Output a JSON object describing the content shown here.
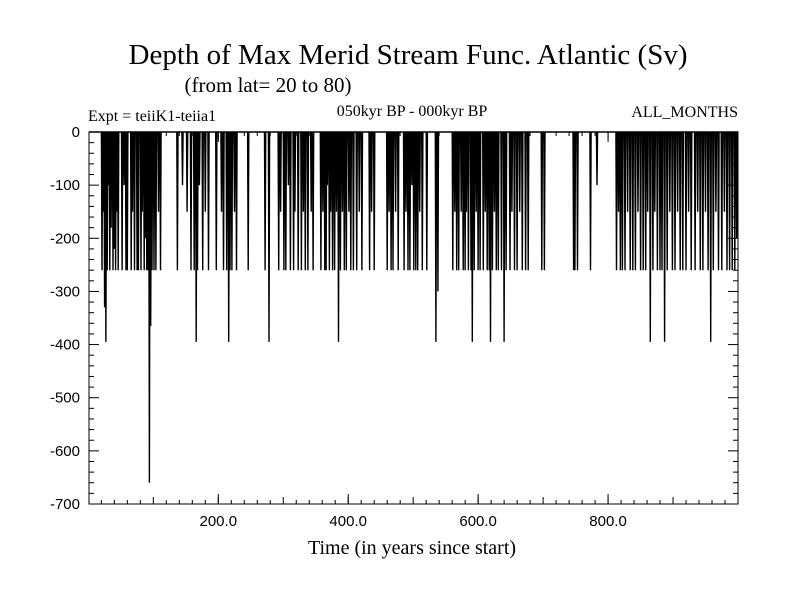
{
  "chart_data": {
    "type": "line",
    "title": "Depth of Max Merid Stream Func. Atlantic (Sv)",
    "subtitle": "(from lat= 20 to 80)",
    "left_label": "Expt = teiiK1-teiia1",
    "center_label": "050kyr BP - 000kyr BP",
    "right_label": "ALL_MONTHS",
    "xlabel": "Time (in years since start)",
    "ylabel": "",
    "xlim": [
      1,
      1000
    ],
    "ylim": [
      -700,
      0
    ],
    "xticks": [
      200,
      400,
      600,
      800
    ],
    "xtick_labels": [
      "200.0",
      "400.0",
      "600.0",
      "800.0"
    ],
    "yticks": [
      0,
      -100,
      -200,
      -300,
      -400,
      -500,
      -600,
      -700
    ],
    "ytick_labels": [
      "0",
      "-100",
      "-200",
      "-300",
      "-400",
      "-500",
      "-600",
      "-700"
    ],
    "grid": false,
    "series": [
      {
        "baseline": 0,
        "spikes": [
          [
            21,
            -260
          ],
          [
            23,
            -150
          ],
          [
            25,
            -330
          ],
          [
            27,
            -395
          ],
          [
            29,
            -260
          ],
          [
            31,
            -100
          ],
          [
            33,
            -260
          ],
          [
            35,
            -180
          ],
          [
            38,
            -260
          ],
          [
            40,
            -220
          ],
          [
            42,
            -260
          ],
          [
            44,
            -150
          ],
          [
            46,
            -260
          ],
          [
            52,
            -260
          ],
          [
            55,
            -100
          ],
          [
            58,
            -260
          ],
          [
            60,
            -260
          ],
          [
            66,
            -260
          ],
          [
            68,
            -150
          ],
          [
            71,
            -260
          ],
          [
            75,
            -260
          ],
          [
            77,
            -260
          ],
          [
            81,
            -260
          ],
          [
            83,
            -150
          ],
          [
            86,
            -260
          ],
          [
            88,
            -200
          ],
          [
            90,
            -260
          ],
          [
            92,
            -260
          ],
          [
            94,
            -660
          ],
          [
            96,
            -365
          ],
          [
            98,
            -260
          ],
          [
            101,
            -260
          ],
          [
            104,
            -260
          ],
          [
            108,
            -150
          ],
          [
            111,
            -260
          ],
          [
            137,
            -260
          ],
          [
            145,
            -100
          ],
          [
            152,
            -150
          ],
          [
            158,
            -260
          ],
          [
            163,
            -260
          ],
          [
            166,
            -395
          ],
          [
            168,
            -260
          ],
          [
            171,
            -100
          ],
          [
            176,
            -260
          ],
          [
            180,
            -150
          ],
          [
            185,
            -260
          ],
          [
            197,
            -260
          ],
          [
            205,
            -150
          ],
          [
            208,
            -260
          ],
          [
            213,
            -260
          ],
          [
            216,
            -395
          ],
          [
            218,
            -260
          ],
          [
            221,
            -260
          ],
          [
            225,
            -150
          ],
          [
            228,
            -260
          ],
          [
            246,
            -260
          ],
          [
            272,
            -260
          ],
          [
            278,
            -395
          ],
          [
            293,
            -260
          ],
          [
            296,
            -150
          ],
          [
            301,
            -260
          ],
          [
            304,
            -260
          ],
          [
            308,
            -100
          ],
          [
            311,
            -260
          ],
          [
            316,
            -260
          ],
          [
            318,
            -150
          ],
          [
            323,
            -260
          ],
          [
            328,
            -260
          ],
          [
            331,
            -150
          ],
          [
            334,
            -260
          ],
          [
            338,
            -260
          ],
          [
            343,
            -150
          ],
          [
            346,
            -260
          ],
          [
            358,
            -260
          ],
          [
            361,
            -150
          ],
          [
            364,
            -260
          ],
          [
            366,
            -260
          ],
          [
            368,
            -100
          ],
          [
            371,
            -260
          ],
          [
            373,
            -150
          ],
          [
            376,
            -260
          ],
          [
            379,
            -260
          ],
          [
            382,
            -150
          ],
          [
            385,
            -395
          ],
          [
            388,
            -260
          ],
          [
            391,
            -150
          ],
          [
            394,
            -260
          ],
          [
            397,
            -260
          ],
          [
            401,
            -150
          ],
          [
            404,
            -260
          ],
          [
            408,
            -260
          ],
          [
            413,
            -260
          ],
          [
            417,
            -150
          ],
          [
            421,
            -260
          ],
          [
            433,
            -260
          ],
          [
            436,
            -150
          ],
          [
            440,
            -260
          ],
          [
            460,
            -260
          ],
          [
            463,
            -150
          ],
          [
            466,
            -260
          ],
          [
            469,
            -260
          ],
          [
            473,
            -150
          ],
          [
            477,
            -260
          ],
          [
            486,
            -260
          ],
          [
            489,
            -150
          ],
          [
            492,
            -260
          ],
          [
            495,
            -260
          ],
          [
            498,
            -100
          ],
          [
            501,
            -260
          ],
          [
            504,
            -260
          ],
          [
            507,
            -260
          ],
          [
            510,
            -150
          ],
          [
            514,
            -260
          ],
          [
            521,
            -260
          ],
          [
            535,
            -395
          ],
          [
            538,
            -300
          ],
          [
            561,
            -260
          ],
          [
            564,
            -150
          ],
          [
            567,
            -260
          ],
          [
            570,
            -260
          ],
          [
            574,
            -150
          ],
          [
            577,
            -260
          ],
          [
            580,
            -260
          ],
          [
            582,
            -150
          ],
          [
            585,
            -260
          ],
          [
            589,
            -260
          ],
          [
            591,
            -395
          ],
          [
            594,
            -260
          ],
          [
            597,
            -150
          ],
          [
            600,
            -260
          ],
          [
            603,
            -260
          ],
          [
            608,
            -260
          ],
          [
            611,
            -150
          ],
          [
            614,
            -260
          ],
          [
            617,
            -260
          ],
          [
            619,
            -395
          ],
          [
            622,
            -260
          ],
          [
            625,
            -150
          ],
          [
            628,
            -260
          ],
          [
            631,
            -260
          ],
          [
            636,
            -260
          ],
          [
            640,
            -395
          ],
          [
            643,
            -260
          ],
          [
            649,
            -260
          ],
          [
            652,
            -150
          ],
          [
            656,
            -260
          ],
          [
            660,
            -260
          ],
          [
            664,
            -150
          ],
          [
            668,
            -260
          ],
          [
            673,
            -260
          ],
          [
            677,
            -260
          ],
          [
            698,
            -260
          ],
          [
            702,
            -260
          ],
          [
            747,
            -260
          ],
          [
            749,
            -260
          ],
          [
            753,
            -260
          ],
          [
            773,
            -260
          ],
          [
            783,
            -100
          ],
          [
            813,
            -260
          ],
          [
            816,
            -150
          ],
          [
            819,
            -260
          ],
          [
            822,
            -260
          ],
          [
            826,
            -260
          ],
          [
            830,
            -150
          ],
          [
            834,
            -260
          ],
          [
            838,
            -260
          ],
          [
            842,
            -260
          ],
          [
            846,
            -150
          ],
          [
            850,
            -260
          ],
          [
            854,
            -260
          ],
          [
            858,
            -260
          ],
          [
            861,
            -150
          ],
          [
            865,
            -395
          ],
          [
            869,
            -260
          ],
          [
            872,
            -150
          ],
          [
            876,
            -260
          ],
          [
            880,
            -260
          ],
          [
            883,
            -260
          ],
          [
            887,
            -395
          ],
          [
            891,
            -260
          ],
          [
            895,
            -150
          ],
          [
            899,
            -260
          ],
          [
            903,
            -260
          ],
          [
            907,
            -150
          ],
          [
            911,
            -260
          ],
          [
            915,
            -260
          ],
          [
            920,
            -260
          ],
          [
            924,
            -150
          ],
          [
            928,
            -260
          ],
          [
            934,
            -260
          ],
          [
            938,
            -150
          ],
          [
            942,
            -260
          ],
          [
            946,
            -260
          ],
          [
            950,
            -150
          ],
          [
            954,
            -260
          ],
          [
            958,
            -395
          ],
          [
            962,
            -260
          ],
          [
            966,
            -150
          ],
          [
            970,
            -260
          ],
          [
            975,
            -260
          ],
          [
            979,
            -150
          ],
          [
            983,
            -260
          ],
          [
            987,
            -260
          ],
          [
            991,
            -260
          ],
          [
            995,
            -260
          ],
          [
            998,
            -200
          ]
        ]
      }
    ]
  }
}
